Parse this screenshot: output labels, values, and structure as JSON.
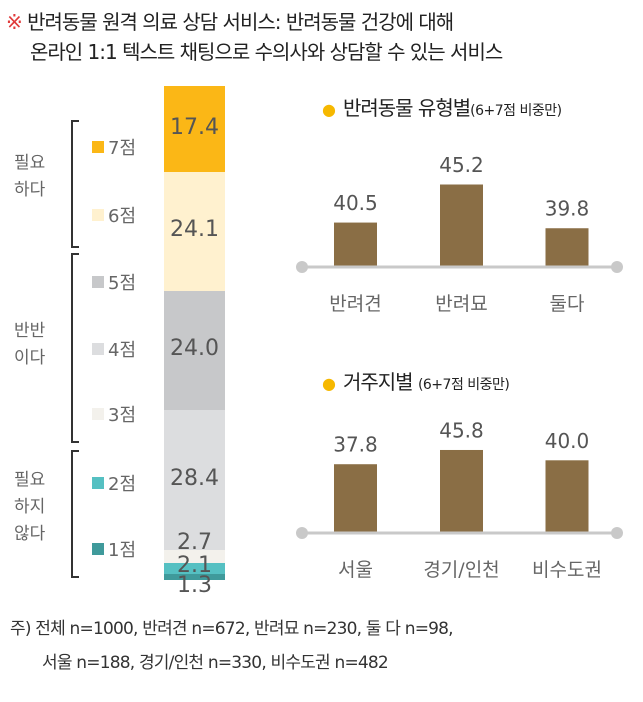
{
  "header": {
    "mark": "※",
    "line1": "반려동물 원격 의료 상담 서비스: 반려동물 건강에 대해",
    "line2": "온라인 1:1 텍스트 채팅으로 수의사와 상담할 수 있는 서비스"
  },
  "groups": [
    {
      "label_line1": "필요",
      "label_line2": "하다",
      "label_line3": ""
    },
    {
      "label_line1": "반반",
      "label_line2": "이다",
      "label_line3": ""
    },
    {
      "label_line1": "필요",
      "label_line2": "하지",
      "label_line3": "않다"
    }
  ],
  "chart_data": [
    {
      "type": "bar",
      "subtype": "stacked-100",
      "title": "",
      "categories": [
        "7점",
        "6점",
        "5점",
        "4점",
        "3점",
        "2점",
        "1점"
      ],
      "values": [
        17.4,
        24.1,
        24.0,
        28.4,
        2.7,
        2.1,
        1.3
      ],
      "value_labels": [
        "17.4",
        "24.1",
        "24.0",
        "28.4",
        "2.7",
        "2.1",
        "1.3"
      ],
      "colors": [
        "#fbb716",
        "#fff1cf",
        "#c7c8ca",
        "#dcdddf",
        "#f3f1ec",
        "#55c0c2",
        "#3f9a9b"
      ],
      "legend": [
        "7점",
        "6점",
        "5점",
        "4점",
        "3점",
        "2점",
        "1점"
      ],
      "legend_position": "left",
      "ylim": [
        0,
        100
      ]
    },
    {
      "type": "bar",
      "title": "반려동물 유형별",
      "subtitle": "(6+7점 비중만)",
      "categories": [
        "반려견",
        "반려묘",
        "둘다"
      ],
      "values": [
        40.5,
        45.2,
        39.8
      ],
      "value_labels": [
        "40.5",
        "45.2",
        "39.8"
      ],
      "color": "#8a6e45",
      "ylim": [
        35.2,
        50
      ]
    },
    {
      "type": "bar",
      "title": "거주지별",
      "subtitle": "(6+7점 비중만)",
      "categories": [
        "서울",
        "경기/인천",
        "비수도권"
      ],
      "values": [
        37.8,
        45.8,
        40.0
      ],
      "value_labels": [
        "37.8",
        "45.8",
        "40.0"
      ],
      "color": "#8a6e45",
      "ylim": [
        0,
        50
      ]
    }
  ],
  "footnote": {
    "line1": "주) 전체 n=1000, 반려견 n=672, 반려묘 n=230, 둘 다 n=98,",
    "line2": "서울 n=188, 경기/인천 n=330, 비수도권 n=482"
  },
  "colors": {
    "accent_dot": "#f6b800",
    "axis": "#c9c9c9",
    "bar": "#8a6e45"
  }
}
